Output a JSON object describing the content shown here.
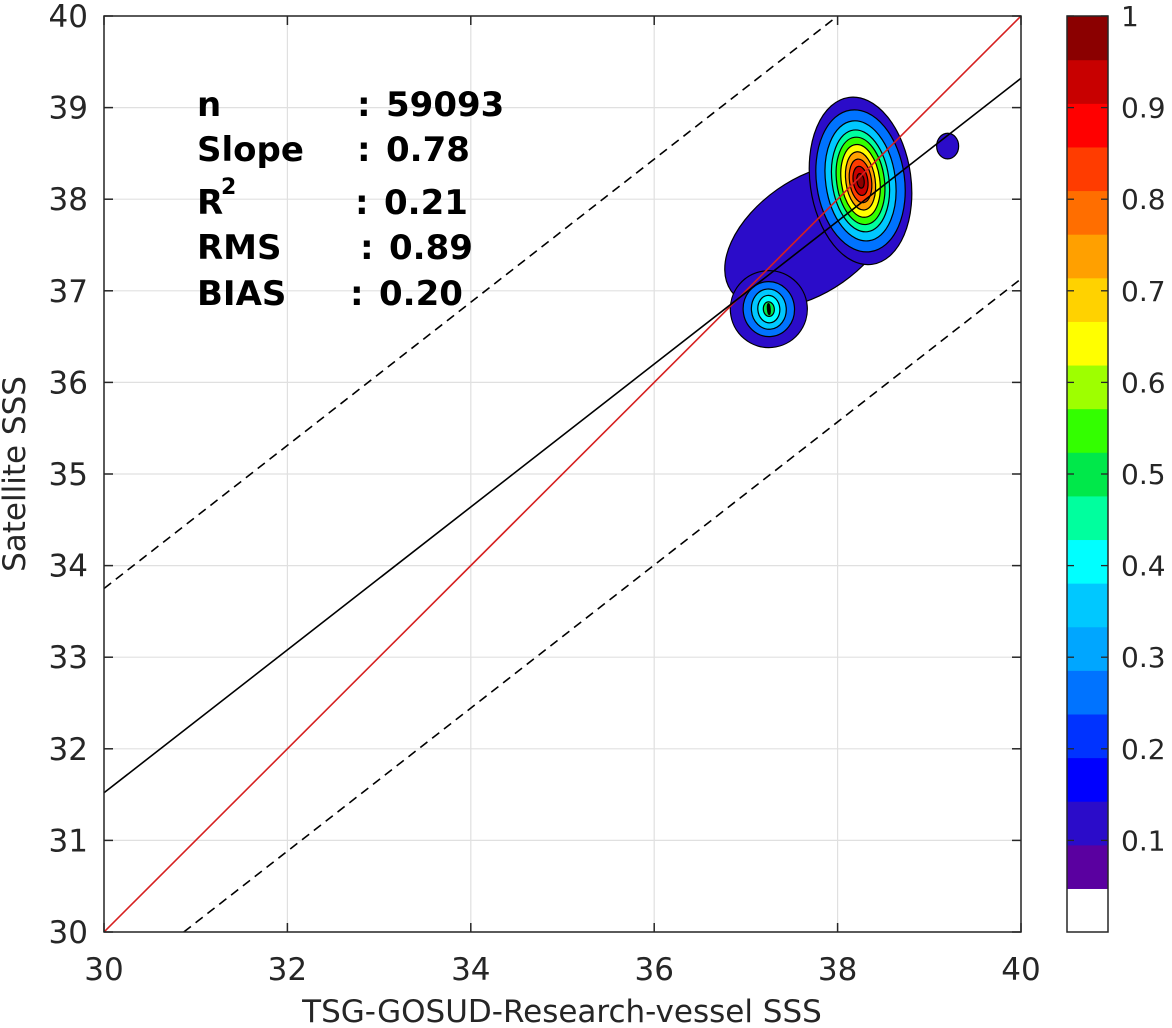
{
  "chart_data": {
    "type": "contour",
    "xlabel": "TSG-GOSUD-Research-vessel SSS",
    "ylabel": "Satellite SSS",
    "xlim": [
      30,
      40
    ],
    "ylim": [
      30,
      40
    ],
    "x_ticks": [
      30,
      32,
      34,
      36,
      38,
      40
    ],
    "y_ticks": [
      30,
      31,
      32,
      33,
      34,
      35,
      36,
      37,
      38,
      39,
      40
    ],
    "grid": true,
    "stats": [
      {
        "label": "n",
        "sep": ":",
        "value": "59093"
      },
      {
        "label": "Slope",
        "sep": ":",
        "value": "0.78"
      },
      {
        "label": "R",
        "label_sup": "2",
        "sep": ":",
        "value": "0.21"
      },
      {
        "label": "RMS",
        "sep": ":",
        "value": "0.89"
      },
      {
        "label": "BIAS",
        "sep": ":",
        "value": "0.20"
      }
    ],
    "lines": [
      {
        "role": "one-to-one",
        "color": "#d62020",
        "style": "solid",
        "points": [
          [
            30,
            30
          ],
          [
            40,
            40
          ]
        ]
      },
      {
        "role": "regression-fit",
        "color": "#000000",
        "style": "solid",
        "points": [
          [
            30,
            31.52
          ],
          [
            40,
            39.32
          ]
        ]
      },
      {
        "role": "upper-bound",
        "color": "#000000",
        "style": "dashed",
        "points": [
          [
            30,
            33.75
          ],
          [
            38.0,
            40.0
          ]
        ]
      },
      {
        "role": "lower-bound",
        "color": "#000000",
        "style": "dashed",
        "points": [
          [
            30.87,
            30.0
          ],
          [
            40.0,
            37.13
          ]
        ]
      }
    ],
    "density_peaks": [
      {
        "x": 38.25,
        "y": 38.2,
        "normalized_density": 0.95
      },
      {
        "x": 37.25,
        "y": 36.8,
        "normalized_density": 0.4
      }
    ],
    "colorbar": {
      "ticks": [
        "0.1",
        "0.2",
        "0.3",
        "0.4",
        "0.5",
        "0.6",
        "0.7",
        "0.8",
        "0.9",
        "1"
      ],
      "range": [
        0,
        1
      ],
      "colors": [
        "#ffffff",
        "#5a00a0",
        "#2b0cc9",
        "#0000ff",
        "#0033ff",
        "#0073ff",
        "#00a6ff",
        "#00c8ff",
        "#00ffff",
        "#00ff9e",
        "#00e84a",
        "#33ff00",
        "#9eff00",
        "#ffff00",
        "#ffd200",
        "#ffa000",
        "#ff6e00",
        "#ff3c00",
        "#ff0000",
        "#c80000",
        "#8b0000"
      ]
    }
  }
}
